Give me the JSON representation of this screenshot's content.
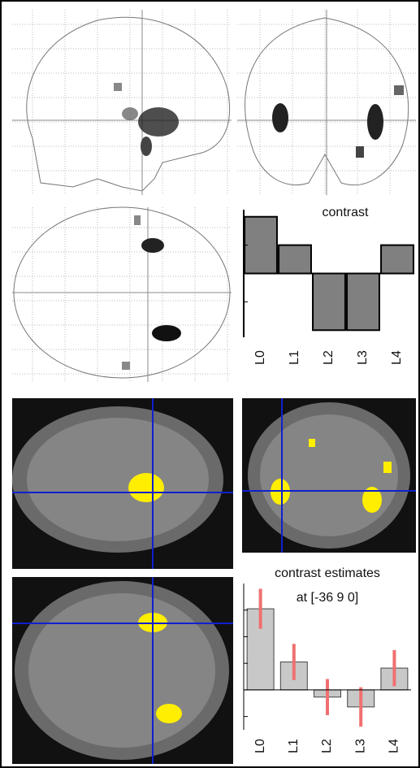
{
  "chart_data": [
    {
      "type": "bar",
      "title": "contrast",
      "categories": [
        "L0",
        "L1",
        "L2",
        "L3",
        "L4"
      ],
      "values": [
        2,
        1,
        -2,
        -2,
        1
      ],
      "color": "#808080",
      "ylim": [
        -2.25,
        2.25
      ],
      "yticks": [
        -1,
        0,
        1
      ]
    },
    {
      "type": "errorbar",
      "title": "contrast estimates",
      "subtitle": "at [-36 9 0]",
      "categories": [
        "L0",
        "L1",
        "L2",
        "L3",
        "L4"
      ],
      "values": [
        3.05,
        1.05,
        -0.27,
        -0.64,
        0.82
      ],
      "errors": [
        0.75,
        0.68,
        0.68,
        0.74,
        0.68
      ],
      "color": "#c8c8c8",
      "error_color": "#f07070",
      "ylim": [
        -1.5,
        4
      ],
      "yticks": [
        -1,
        0,
        1,
        2,
        3
      ]
    }
  ]
}
